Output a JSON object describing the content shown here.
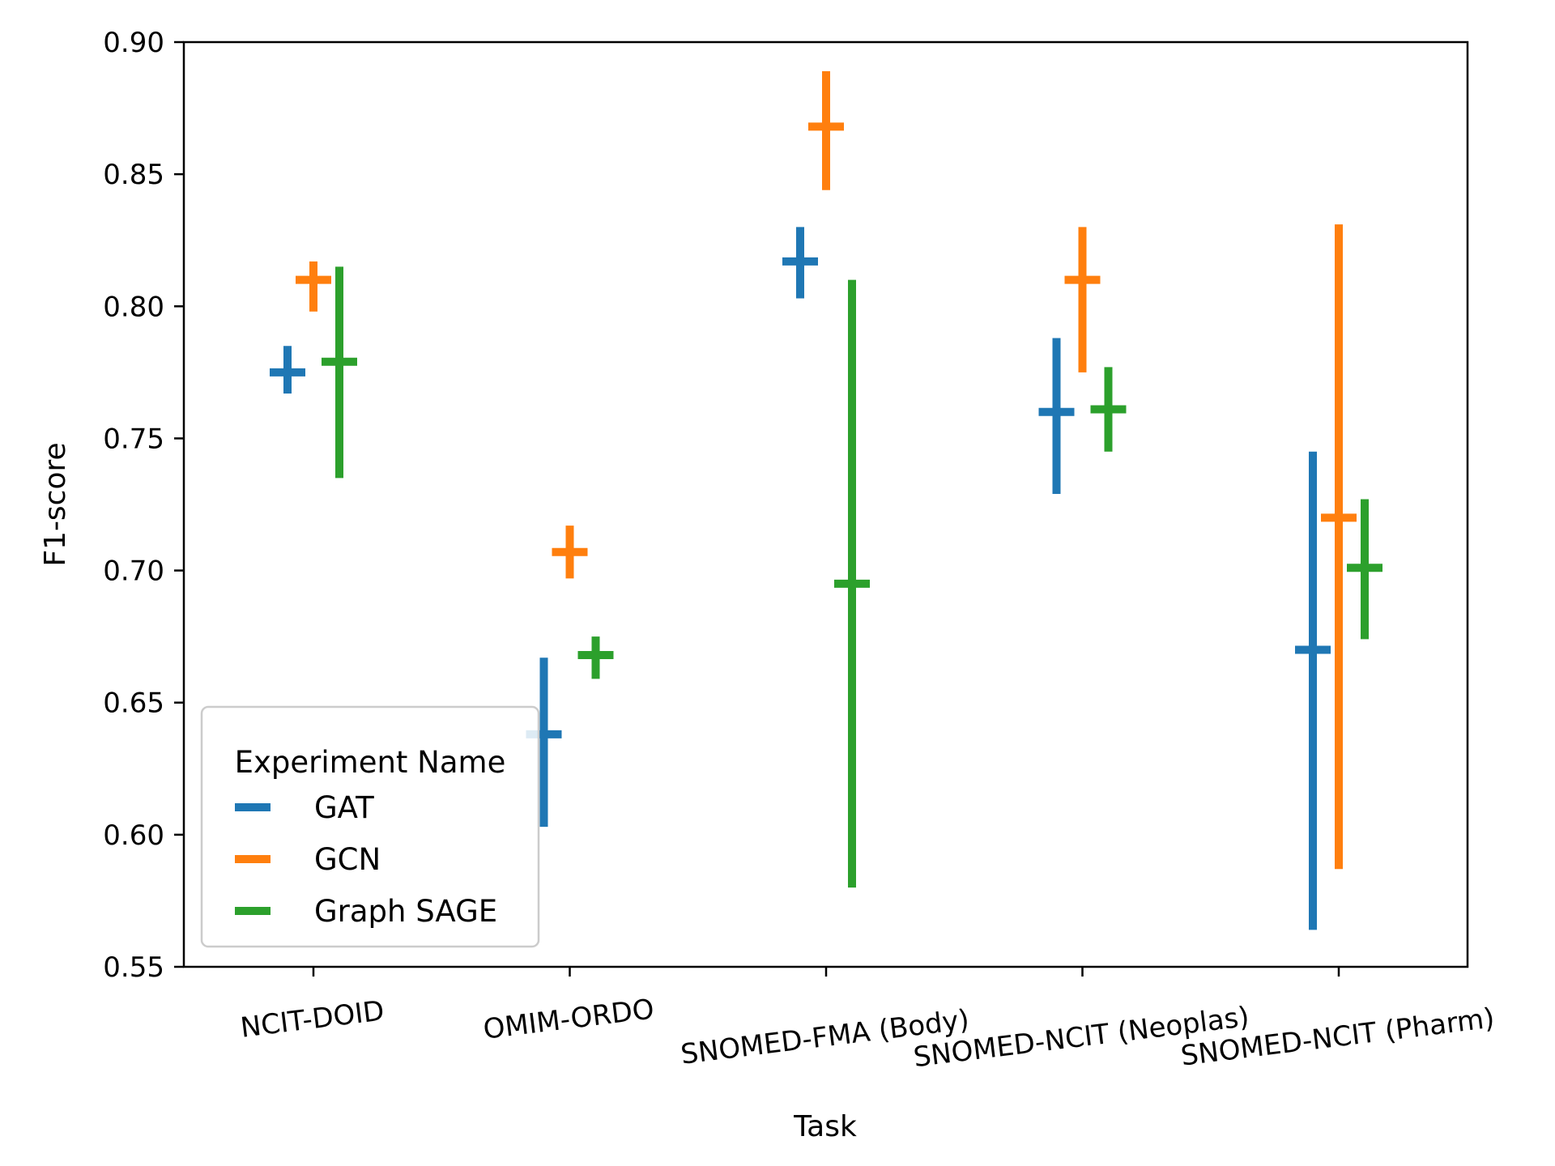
{
  "chart_data": {
    "type": "errorbar",
    "xlabel": "Task",
    "ylabel": "F1-score",
    "ylim": [
      0.55,
      0.9
    ],
    "yticks": [
      "0.55",
      "0.60",
      "0.65",
      "0.70",
      "0.75",
      "0.80",
      "0.85",
      "0.90"
    ],
    "categories": [
      "NCIT-DOID",
      "OMIM-ORDO",
      "SNOMED-FMA (Body)",
      "SNOMED-NCIT (Neoplas)",
      "SNOMED-NCIT (Pharm)"
    ],
    "grid": false,
    "legend": {
      "title": "Experiment Name",
      "placement": "lower-left"
    },
    "series": [
      {
        "name": "GAT",
        "color": "#1f77b4",
        "mean": [
          0.775,
          0.638,
          0.817,
          0.76,
          0.67
        ],
        "low": [
          0.767,
          0.603,
          0.803,
          0.729,
          0.564
        ],
        "high": [
          0.785,
          0.667,
          0.83,
          0.788,
          0.745
        ]
      },
      {
        "name": "GCN",
        "color": "#ff7f0e",
        "mean": [
          0.81,
          0.707,
          0.868,
          0.81,
          0.72
        ],
        "low": [
          0.798,
          0.697,
          0.844,
          0.775,
          0.587
        ],
        "high": [
          0.817,
          0.717,
          0.889,
          0.83,
          0.831
        ]
      },
      {
        "name": "Graph SAGE",
        "color": "#2ca02c",
        "mean": [
          0.779,
          0.668,
          0.695,
          0.761,
          0.701
        ],
        "low": [
          0.735,
          0.659,
          0.58,
          0.745,
          0.674
        ],
        "high": [
          0.815,
          0.675,
          0.81,
          0.777,
          0.727
        ]
      }
    ]
  }
}
